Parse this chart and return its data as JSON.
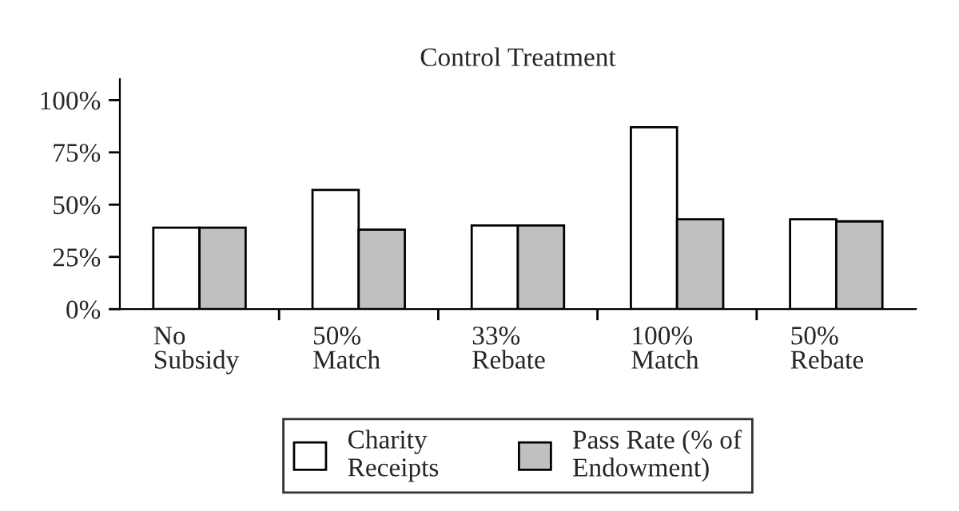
{
  "chart_data": {
    "type": "bar",
    "title": "Control Treatment",
    "categories": [
      "No\nSubsidy",
      "50%\nMatch",
      "33%\nRebate",
      "100%\nMatch",
      "50%\nRebate"
    ],
    "series": [
      {
        "name": "Charity\nReceipts",
        "color": "#ffffff",
        "values": [
          39,
          57,
          40,
          87,
          43
        ]
      },
      {
        "name": "Pass Rate (% of\nEndowment)",
        "color": "#c0c0c0",
        "values": [
          39,
          38,
          40,
          43,
          42
        ]
      }
    ],
    "ylim": [
      0,
      110
    ],
    "yticks": [
      {
        "value": 0,
        "label": "0%"
      },
      {
        "value": 25,
        "label": "25%"
      },
      {
        "value": 50,
        "label": "50%"
      },
      {
        "value": 75,
        "label": "75%"
      },
      {
        "value": 100,
        "label": "100%"
      }
    ],
    "grid": false,
    "legend": "bottom"
  }
}
